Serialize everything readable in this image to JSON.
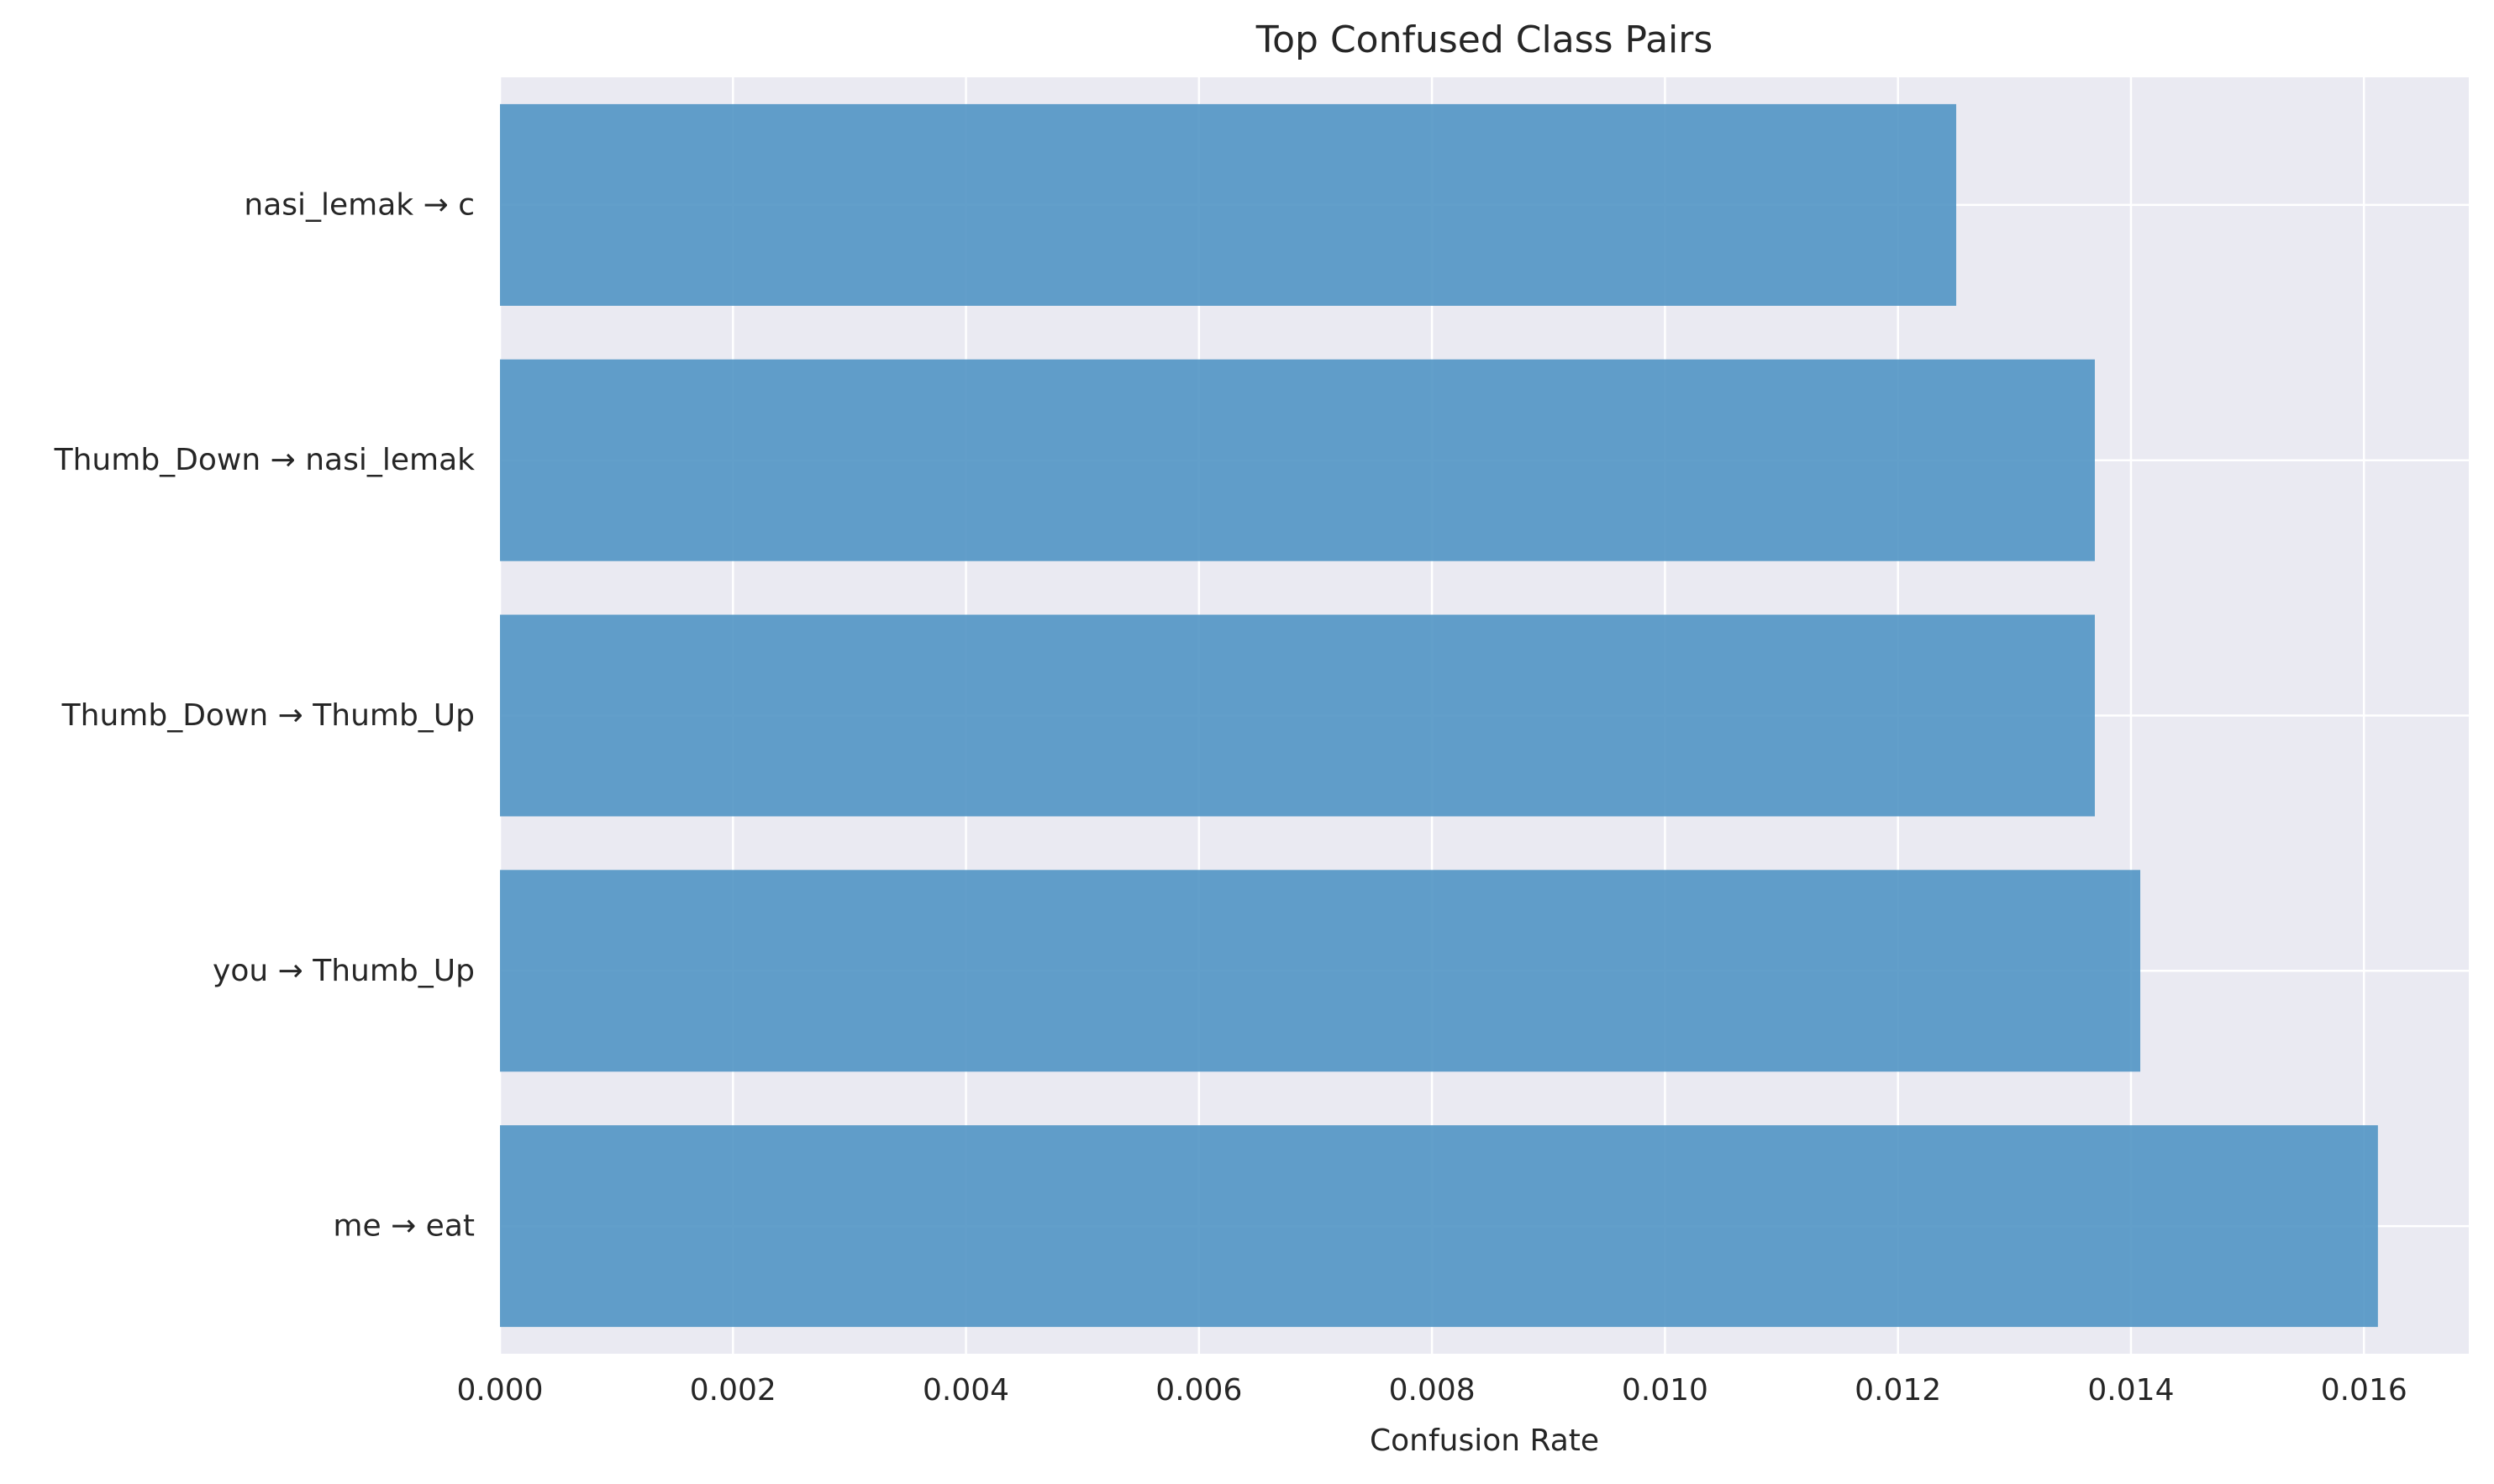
{
  "chart_data": {
    "type": "bar",
    "orientation": "horizontal",
    "title": "Top Confused Class Pairs",
    "xlabel": "Confusion Rate",
    "ylabel": "",
    "categories": [
      "me → eat",
      "you → Thumb_Up",
      "Thumb_Down → Thumb_Up",
      "Thumb_Down → nasi_lemak",
      "nasi_lemak → c"
    ],
    "values": [
      0.01612,
      0.01408,
      0.01369,
      0.01369,
      0.0125
    ],
    "xlim": [
      0,
      0.0169
    ],
    "xticks": [
      0,
      0.002,
      0.004,
      0.006,
      0.008,
      0.01,
      0.012,
      0.014,
      0.016
    ],
    "xtick_labels": [
      "0.000",
      "0.002",
      "0.004",
      "0.006",
      "0.008",
      "0.010",
      "0.012",
      "0.014",
      "0.016"
    ],
    "grid": true,
    "legend": "none",
    "colors": {
      "bar": "#4c92c3",
      "plot_background": "#eaeaf2",
      "grid": "#ffffff",
      "text": "#262626",
      "page_background": "#ffffff"
    }
  }
}
